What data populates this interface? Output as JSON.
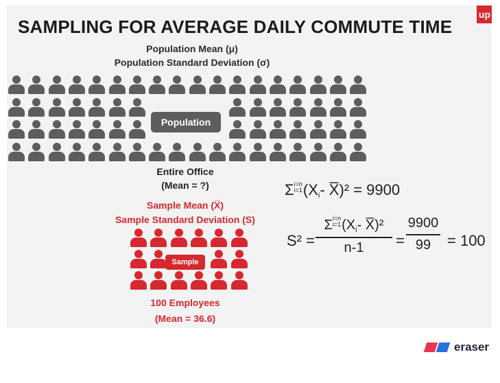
{
  "title": "SAMPLING FOR AVERAGE DAILY COMMUTE TIME",
  "logo_text": "up",
  "population": {
    "mean_label": "Population Mean (μ)",
    "sd_label": "Population Standard Deviation (σ)",
    "box_label": "Population",
    "caption_line1": "Entire Office",
    "caption_line2": "(Mean = ?)"
  },
  "sample": {
    "mean_label": "Sample Mean (X̅)",
    "sd_label": "Sample Standard Deviation (S)",
    "box_label": "Sample",
    "caption_line1": "100 Employees",
    "caption_line2": "(Mean = 36.6)"
  },
  "formula1": {
    "sigma": "Σ",
    "upper": "i=n",
    "lower": "i=1",
    "body_open": "(X",
    "sub": "i",
    "body_rest": "- X̅)² = 9900"
  },
  "formula2": {
    "lhs": "S² =",
    "num_sigma": "Σ",
    "num_upper": "i=n",
    "num_lower": "i=1",
    "num_open": "(X",
    "num_sub": "i",
    "num_rest": "- X̅)²",
    "den": "n-1",
    "eq1": "=",
    "frac2_num": "9900",
    "frac2_den": "99",
    "result": "= 100"
  },
  "watermark": "eraser",
  "colors": {
    "grey": "#5d5d5d",
    "red": "#d7282f",
    "background": "#f3f3f3"
  }
}
